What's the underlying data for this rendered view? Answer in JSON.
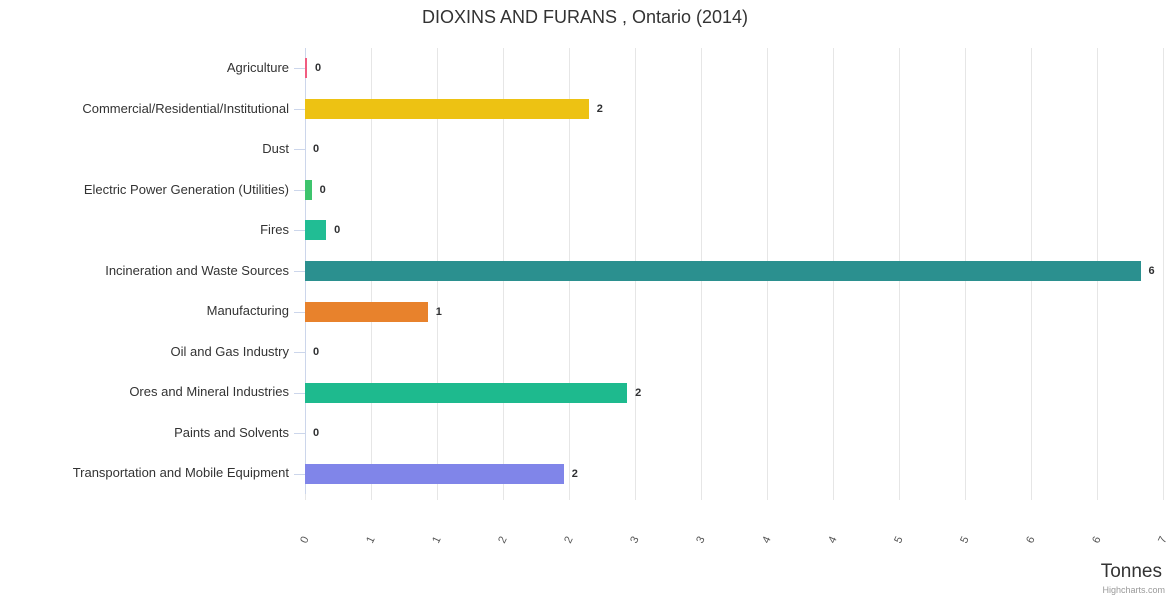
{
  "chart": {
    "title": "DIOXINS AND FURANS , Ontario (2014)",
    "credit": "Highcharts.com"
  },
  "chart_data": {
    "type": "bar",
    "orientation": "horizontal",
    "title": "DIOXINS AND FURANS , Ontario (2014)",
    "xlabel": "Tonnes",
    "ylabel": "",
    "categories": [
      "Agriculture",
      "Commercial/Residential/Institutional",
      "Dust",
      "Electric Power Generation (Utilities)",
      "Fires",
      "Incineration and Waste Sources",
      "Manufacturing",
      "Oil and Gas Industry",
      "Ores and Mineral Industries",
      "Paints and Solvents",
      "Transportation and Mobile Equipment"
    ],
    "values": [
      0.01,
      2.15,
      0,
      0.05,
      0.16,
      6.33,
      0.93,
      0,
      2.44,
      0,
      1.96
    ],
    "value_labels": [
      "0",
      "2",
      "0",
      "0",
      "0",
      "6",
      "1",
      "0",
      "2",
      "0",
      "2"
    ],
    "colors": [
      "#f15c80",
      "#edc213",
      "#cccccc",
      "#3ec46d",
      "#21bd94",
      "#2b908f",
      "#e8822c",
      "#cccccc",
      "#1eba8e",
      "#cccccc",
      "#8085e9"
    ],
    "xlim": [
      0,
      6.5
    ],
    "xticks": {
      "step": 0.5,
      "labels": [
        "0",
        "1",
        "1",
        "2",
        "2",
        "3",
        "3",
        "4",
        "4",
        "5",
        "5",
        "6",
        "6",
        "7"
      ]
    },
    "grid": true,
    "legend": false,
    "grid_color": "#e6e6e6",
    "axis_line_color": "#ccd6eb"
  }
}
